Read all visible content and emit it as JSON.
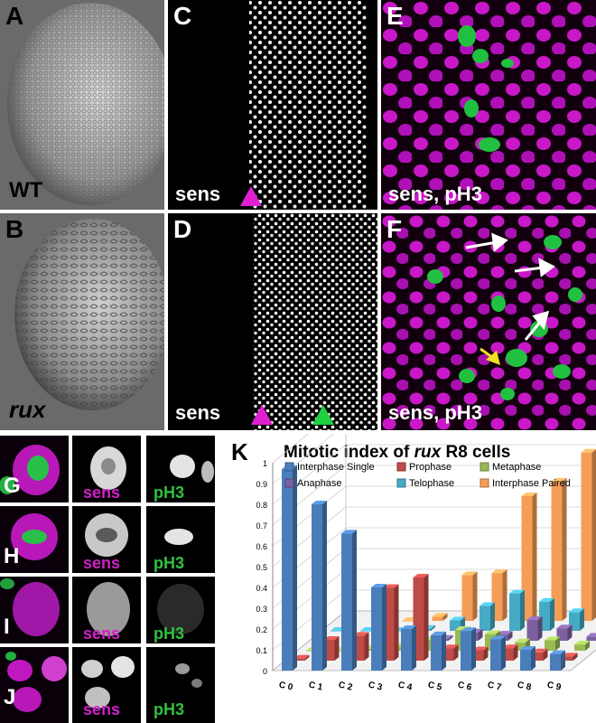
{
  "panels": {
    "A": {
      "label": "A",
      "caption": "WT"
    },
    "B": {
      "label": "B",
      "caption": "rux"
    },
    "C": {
      "label": "C",
      "caption": "sens"
    },
    "D": {
      "label": "D",
      "caption": "sens"
    },
    "E": {
      "label": "E",
      "caption": "sens, pH3"
    },
    "F": {
      "label": "F",
      "caption": "sens, pH3"
    },
    "G": {
      "label": "G",
      "stain1": "sens",
      "stain2": "pH3"
    },
    "H": {
      "label": "H",
      "stain1": "sens",
      "stain2": "pH3"
    },
    "I": {
      "label": "I",
      "stain1": "sens",
      "stain2": "pH3"
    },
    "J": {
      "label": "J",
      "stain1": "sens",
      "stain2": "pH3"
    }
  },
  "chart_label": "K",
  "chart_data": {
    "type": "bar",
    "subtype": "3d-grouped",
    "title_prefix": "Mitotic index of ",
    "title_italic": "rux",
    "title_suffix": " R8 cells",
    "categories": [
      "C 0",
      "C 1",
      "C 2",
      "C 3",
      "C 4",
      "C 5",
      "C 6",
      "C 7",
      "C 8",
      "C 9"
    ],
    "y_ticks": [
      "0",
      "0.1",
      "0.2",
      "0.3",
      "0.4",
      "0.5",
      "0.6",
      "0.7",
      "0.8",
      "0.9",
      "1"
    ],
    "ylim": [
      0,
      1
    ],
    "legend_position": "top",
    "series": [
      {
        "name": "Interphase Single",
        "color": "#4a7ebb",
        "values": [
          0.97,
          0.8,
          0.66,
          0.4,
          0.2,
          0.17,
          0.19,
          0.15,
          0.1,
          0.08
        ]
      },
      {
        "name": "Prophase",
        "color": "#be4b48",
        "values": [
          0.01,
          0.1,
          0.12,
          0.35,
          0.4,
          0.06,
          0.05,
          0.06,
          0.04,
          0.02
        ]
      },
      {
        "name": "Metaphase",
        "color": "#98b954",
        "values": [
          0.0,
          0.0,
          0.01,
          0.02,
          0.05,
          0.1,
          0.08,
          0.04,
          0.05,
          0.03
        ]
      },
      {
        "name": "Anaphase",
        "color": "#7d60a0",
        "values": [
          0.0,
          0.0,
          0.0,
          0.0,
          0.01,
          0.04,
          0.03,
          0.1,
          0.06,
          0.02
        ]
      },
      {
        "name": "Telophase",
        "color": "#46aac5",
        "values": [
          0.0,
          0.0,
          0.0,
          0.01,
          0.05,
          0.12,
          0.18,
          0.14,
          0.09,
          0.04
        ]
      },
      {
        "name": "Interphase Paired",
        "color": "#f59d56",
        "values": [
          0.0,
          0.0,
          0.0,
          0.02,
          0.22,
          0.23,
          0.6,
          0.67,
          0.81,
          1.0
        ]
      }
    ]
  }
}
